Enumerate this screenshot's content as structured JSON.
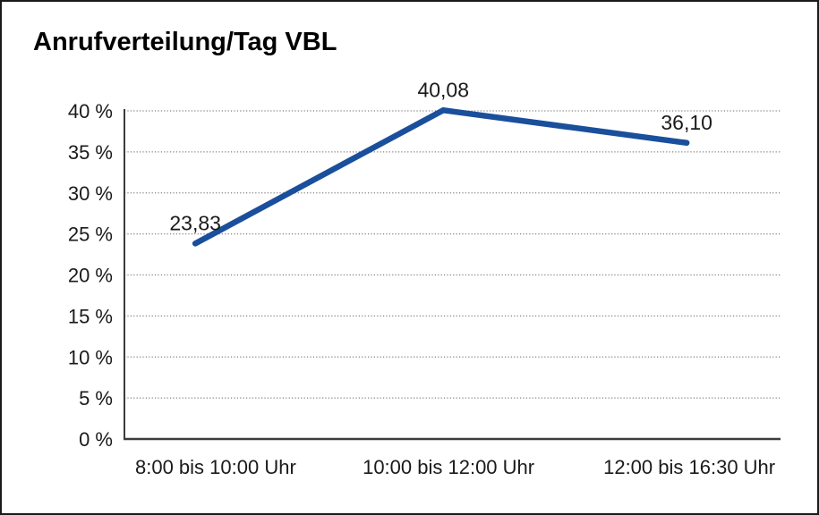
{
  "chart_data": {
    "type": "line",
    "title": "Anrufverteilung/Tag VBL",
    "categories": [
      "8:00 bis 10:00 Uhr",
      "10:00 bis 12:00 Uhr",
      "12:00 bis 16:30 Uhr"
    ],
    "values": [
      23.83,
      40.08,
      36.1
    ],
    "value_labels": [
      "23,83",
      "40,08",
      "36,10"
    ],
    "xlabel": "",
    "ylabel": "",
    "ylim": [
      0,
      40
    ],
    "ytick_step": 5,
    "ytick_labels": [
      "0 %",
      "5 %",
      "10 %",
      "15 %",
      "20 %",
      "25 %",
      "30 %",
      "35 %",
      "40 %"
    ],
    "grid": "horizontal-dotted",
    "legend": "none",
    "colors": {
      "line": "#1A4F9C",
      "axis": "#3c3c3c",
      "gridline": "#808080",
      "text": "#1a1a1a",
      "background": "#ffffff",
      "border": "#1a1a1a"
    }
  }
}
